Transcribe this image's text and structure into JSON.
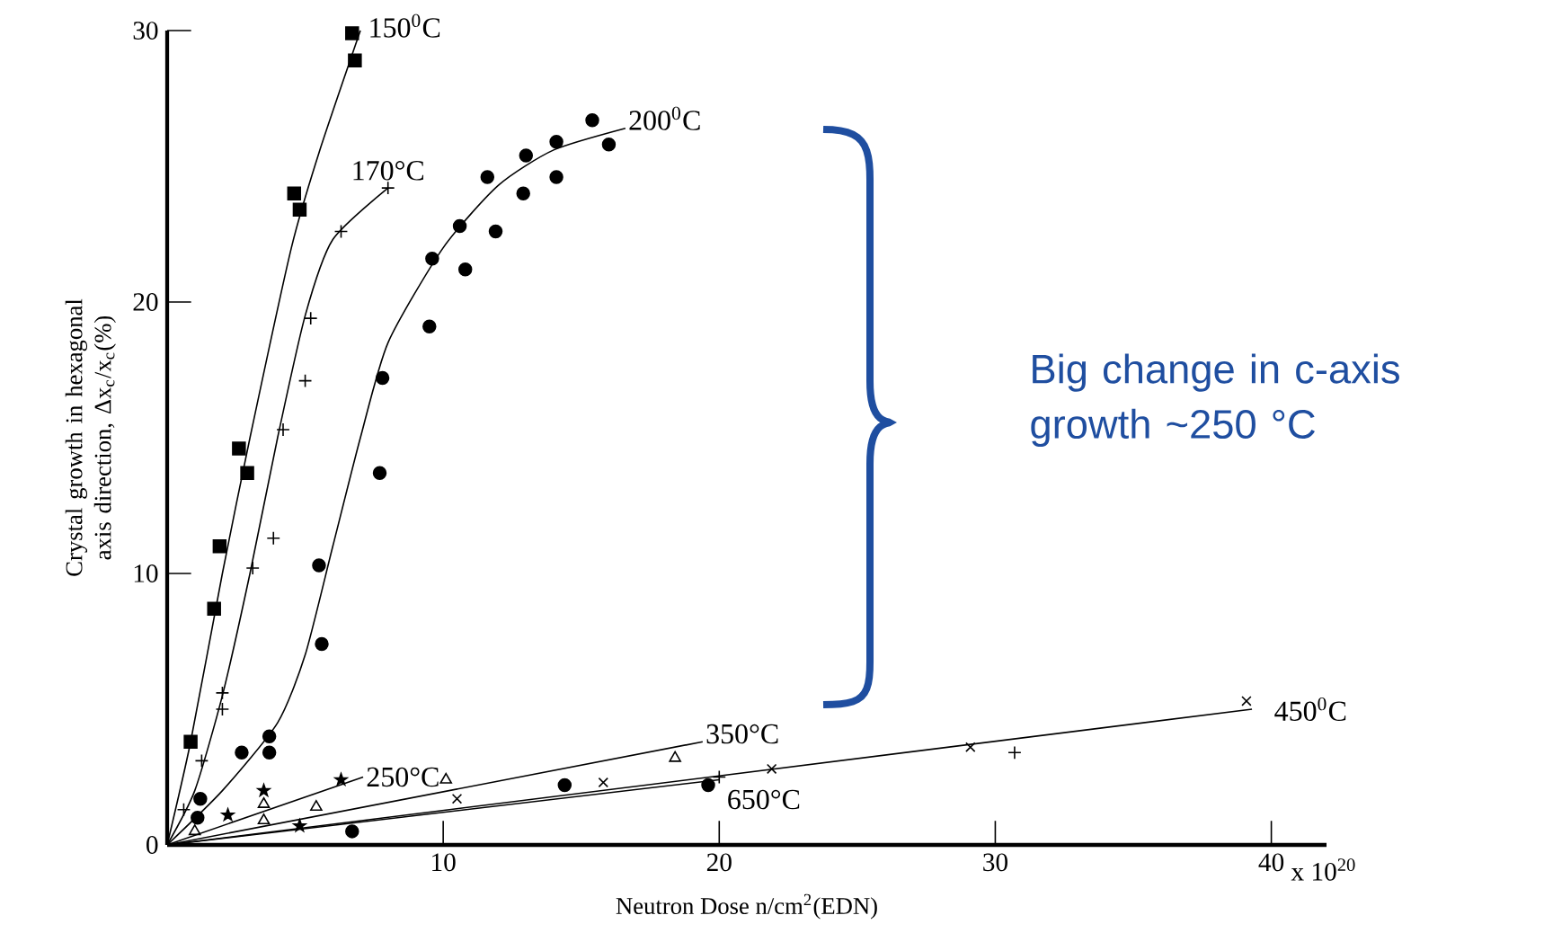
{
  "chart_data": {
    "type": "scatter",
    "xlabel": "Neutron Dose n/cm$^{2}$(EDN)",
    "ylabel": "Crystal growth in hexagonal axis direction, Δx$_{c}$/x$_{c}$(%)",
    "xlim": [
      0,
      42
    ],
    "ylim": [
      0,
      30
    ],
    "xticks": [
      10,
      20,
      30,
      40
    ],
    "yticks": [
      0,
      10,
      20,
      30
    ],
    "series": [
      {
        "marker": "square",
        "color": "#000000",
        "x": [
          0.85,
          1.7,
          1.9,
          2.6,
          2.9,
          4.6,
          4.8,
          6.7,
          6.8
        ],
        "values": [
          3.8,
          8.7,
          11.0,
          14.6,
          13.7,
          24.0,
          23.4,
          29.9,
          28.9
        ]
      },
      {
        "marker": "plus",
        "color": "#000000",
        "x": [
          0.6,
          1.25,
          2.0,
          2.0,
          3.1,
          3.85,
          4.2,
          5.0,
          5.2,
          6.3,
          8.0
        ],
        "values": [
          1.3,
          3.1,
          5.0,
          5.6,
          10.2,
          11.3,
          15.3,
          17.1,
          19.4,
          22.6,
          24.2
        ]
      },
      {
        "marker": "circle",
        "color": "#000000",
        "x": [
          1.1,
          1.2,
          2.7,
          3.7,
          3.7,
          5.5,
          5.6,
          7.7,
          7.8,
          9.5,
          9.6,
          10.6,
          10.8,
          11.6,
          11.9,
          12.9,
          13.0,
          14.1,
          14.1,
          15.4,
          16.0
        ],
        "values": [
          1.0,
          1.7,
          3.4,
          3.4,
          4.0,
          10.3,
          7.4,
          13.7,
          17.2,
          19.1,
          21.6,
          22.8,
          21.2,
          24.6,
          22.6,
          24.0,
          25.4,
          24.6,
          25.9,
          26.7,
          25.8
        ]
      },
      {
        "marker": "star",
        "color": "#000000",
        "x": [
          2.2,
          3.5,
          4.8,
          6.3
        ],
        "values": [
          1.1,
          2.0,
          0.7,
          2.4
        ]
      },
      {
        "marker": "triangle",
        "color": "#000000",
        "x": [
          1.0,
          3.5,
          3.5,
          5.4,
          10.1,
          18.4
        ],
        "values": [
          0.5,
          1.5,
          0.9,
          1.4,
          2.4,
          3.2
        ]
      },
      {
        "marker": "cross",
        "color": "#000000",
        "x": [
          10.5,
          15.8,
          21.9,
          29.1,
          39.1
        ],
        "values": [
          1.7,
          2.3,
          2.8,
          3.6,
          5.3
        ]
      },
      {
        "marker": "circle",
        "color": "#000000",
        "x": [
          6.7,
          14.4,
          19.6
        ],
        "values": [
          0.5,
          2.2,
          2.2
        ]
      },
      {
        "marker": "plus",
        "color": "#000000",
        "x": [
          20.0,
          30.7
        ],
        "values": [
          2.5,
          3.4
        ]
      },
      {
        "type": "line",
        "name": "150$^{0}$C",
        "color": "#000000",
        "x": [
          0,
          0.85,
          2,
          3,
          4.5,
          5.5,
          7
        ],
        "values": [
          0,
          3.8,
          10,
          15,
          22,
          25.5,
          30
        ]
      },
      {
        "type": "line",
        "name": "170°C",
        "color": "#000000",
        "x": [
          0,
          1,
          2,
          3,
          4,
          5,
          6,
          8
        ],
        "values": [
          0,
          2,
          5.5,
          10,
          15,
          19.5,
          22.3,
          24.2
        ]
      },
      {
        "type": "line",
        "name": "200$^{0}$C",
        "color": "#000000",
        "x": [
          0,
          2,
          4,
          5,
          6,
          7,
          8,
          10,
          12,
          14,
          16.6
        ],
        "values": [
          0,
          2,
          4.5,
          7,
          11,
          15,
          18.5,
          22,
          24.3,
          25.6,
          26.4
        ]
      },
      {
        "type": "line",
        "name": "250°C",
        "color": "#000000",
        "x": [
          0,
          7.1
        ],
        "values": [
          0,
          2.5
        ]
      },
      {
        "type": "line",
        "name": "350°C",
        "color": "#000000",
        "x": [
          0,
          19.4
        ],
        "values": [
          0,
          3.8
        ]
      },
      {
        "type": "line",
        "name": "450$^{0}$C",
        "color": "#000000",
        "x": [
          0,
          39.3
        ],
        "values": [
          0,
          5.0
        ]
      },
      {
        "type": "line",
        "name": "650°C",
        "color": "#000000",
        "x": [
          0,
          20.0
        ],
        "values": [
          0,
          2.4
        ]
      }
    ],
    "annotations": [
      "x 10$^{20}$",
      "Big change in c-axis growth ~250 °C"
    ]
  }
}
